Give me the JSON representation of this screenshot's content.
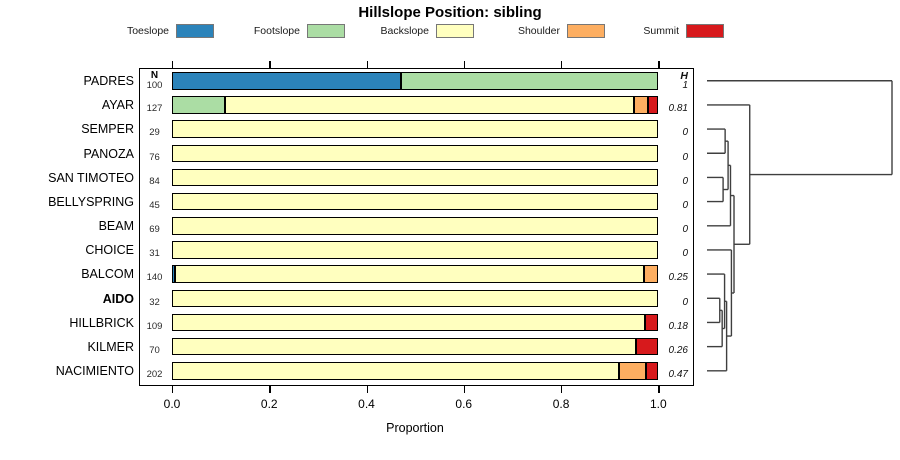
{
  "title": "Hillslope Position: sibling",
  "columns": {
    "n_header": "N",
    "h_header": "H"
  },
  "axis": {
    "label": "Proportion",
    "tick_labels": [
      "0.0",
      "0.2",
      "0.4",
      "0.6",
      "0.8",
      "1.0"
    ]
  },
  "legend": [
    {
      "label": "Toeslope",
      "color": "#2B83BA"
    },
    {
      "label": "Footslope",
      "color": "#ABDDA4"
    },
    {
      "label": "Backslope",
      "color": "#FFFFBF"
    },
    {
      "label": "Shoulder",
      "color": "#FDAE61"
    },
    {
      "label": "Summit",
      "color": "#D7191C"
    }
  ],
  "chart_data": {
    "type": "bar",
    "orientation": "horizontal-stacked",
    "title": "Hillslope Position: sibling",
    "xlabel": "Proportion",
    "xlim": [
      0,
      1
    ],
    "xticks": [
      0,
      0.2,
      0.4,
      0.6,
      0.8,
      1.0
    ],
    "series": [
      "toeslope",
      "footslope",
      "backslope",
      "shoulder",
      "summit"
    ],
    "series_colors": {
      "toeslope": "#2B83BA",
      "footslope": "#ABDDA4",
      "backslope": "#FFFFBF",
      "shoulder": "#FDAE61",
      "summit": "#D7191C"
    },
    "rows": [
      {
        "name": "PADRES",
        "n": 100,
        "shannon_h": "1",
        "bold": false,
        "segments": [
          [
            "toeslope",
            0.47
          ],
          [
            "footslope",
            0.53
          ]
        ]
      },
      {
        "name": "AYAR",
        "n": 127,
        "shannon_h": "0.81",
        "bold": false,
        "segments": [
          [
            "footslope",
            0.11
          ],
          [
            "backslope",
            0.84
          ],
          [
            "shoulder",
            0.029
          ],
          [
            "summit",
            0.021
          ]
        ]
      },
      {
        "name": "SEMPER",
        "n": 29,
        "shannon_h": "0",
        "bold": false,
        "segments": [
          [
            "backslope",
            1
          ]
        ]
      },
      {
        "name": "PANOZA",
        "n": 76,
        "shannon_h": "0",
        "bold": false,
        "segments": [
          [
            "backslope",
            1
          ]
        ]
      },
      {
        "name": "SAN TIMOTEO",
        "n": 84,
        "shannon_h": "0",
        "bold": false,
        "segments": [
          [
            "backslope",
            1
          ]
        ]
      },
      {
        "name": "BELLYSPRING",
        "n": 45,
        "shannon_h": "0",
        "bold": false,
        "segments": [
          [
            "backslope",
            1
          ]
        ]
      },
      {
        "name": "BEAM",
        "n": 69,
        "shannon_h": "0",
        "bold": false,
        "segments": [
          [
            "backslope",
            1
          ]
        ]
      },
      {
        "name": "CHOICE",
        "n": 31,
        "shannon_h": "0",
        "bold": false,
        "segments": [
          [
            "backslope",
            1
          ]
        ]
      },
      {
        "name": "BALCOM",
        "n": 140,
        "shannon_h": "0.25",
        "bold": false,
        "segments": [
          [
            "toeslope",
            0.007
          ],
          [
            "backslope",
            0.964
          ],
          [
            "shoulder",
            0.029
          ]
        ]
      },
      {
        "name": "AIDO",
        "n": 32,
        "shannon_h": "0",
        "bold": true,
        "segments": [
          [
            "backslope",
            1
          ]
        ]
      },
      {
        "name": "HILLBRICK",
        "n": 109,
        "shannon_h": "0.18",
        "bold": false,
        "segments": [
          [
            "backslope",
            0.972
          ],
          [
            "summit",
            0.028
          ]
        ]
      },
      {
        "name": "KILMER",
        "n": 70,
        "shannon_h": "0.26",
        "bold": false,
        "segments": [
          [
            "backslope",
            0.955
          ],
          [
            "summit",
            0.045
          ]
        ]
      },
      {
        "name": "NACIMIENTO",
        "n": 202,
        "shannon_h": "0.47",
        "bold": false,
        "segments": [
          [
            "backslope",
            0.92
          ],
          [
            "shoulder",
            0.055
          ],
          [
            "summit",
            0.025
          ]
        ]
      }
    ],
    "dendrogram": {
      "h": 1.0,
      "children": [
        {
          "leaf": "PADRES"
        },
        {
          "h": 0.231,
          "children": [
            {
              "leaf": "AYAR"
            },
            {
              "h": 0.146,
              "children": [
                {
                  "h": 0.127,
                  "children": [
                    {
                      "h": 0.114,
                      "children": [
                        {
                          "h": 0.098,
                          "children": [
                            {
                              "leaf": "SEMPER"
                            },
                            {
                              "leaf": "PANOZA"
                            }
                          ]
                        },
                        {
                          "h": 0.087,
                          "children": [
                            {
                              "leaf": "SAN TIMOTEO"
                            },
                            {
                              "leaf": "BELLYSPRING"
                            }
                          ]
                        }
                      ]
                    },
                    {
                      "leaf": "BEAM"
                    }
                  ]
                },
                {
                  "h": 0.132,
                  "children": [
                    {
                      "leaf": "CHOICE"
                    },
                    {
                      "h": 0.106,
                      "children": [
                        {
                          "h": 0.095,
                          "children": [
                            {
                              "leaf": "BALCOM"
                            },
                            {
                              "h": 0.082,
                              "children": [
                                {
                                  "h": 0.069,
                                  "children": [
                                    {
                                      "leaf": "AIDO"
                                    },
                                    {
                                      "leaf": "HILLBRICK"
                                    }
                                  ]
                                },
                                {
                                  "leaf": "KILMER"
                                }
                              ]
                            }
                          ]
                        },
                        {
                          "leaf": "NACIMIENTO"
                        }
                      ]
                    }
                  ]
                }
              ]
            }
          ]
        }
      ]
    }
  }
}
